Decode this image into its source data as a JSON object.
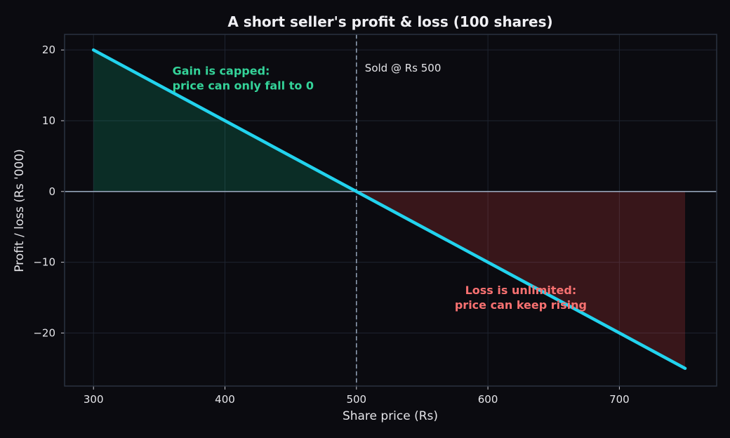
{
  "chart_data": {
    "type": "line",
    "title": "A short seller's profit & loss (100 shares)",
    "xlabel": "Share price (Rs)",
    "ylabel": "Profit / loss (Rs '000)",
    "xlim": [
      278,
      774
    ],
    "ylim": [
      -27.5,
      22.2
    ],
    "x_ticks": [
      300,
      400,
      500,
      600,
      700
    ],
    "y_ticks": [
      -20,
      -10,
      0,
      10,
      20
    ],
    "y_tick_labels": [
      "−20",
      "−10",
      "0",
      "10",
      "20"
    ],
    "grid": true,
    "series": [
      {
        "x": [
          300,
          750
        ],
        "y": [
          20,
          -25
        ],
        "color": "#22d3ee"
      }
    ],
    "reference_lines": {
      "vertical": {
        "x": 500,
        "label": "Sold @ Rs 500",
        "color": "#94a3b8"
      },
      "horizontal": {
        "y": 0,
        "color": "#94a3b8"
      }
    },
    "regions": [
      {
        "name": "gain",
        "from_x": 300,
        "to_x": 500,
        "color": "#10b981"
      },
      {
        "name": "loss",
        "from_x": 500,
        "to_x": 750,
        "color": "#ef4444"
      }
    ],
    "annotations": [
      {
        "lines": [
          "Gain is capped:",
          "price can only fall to 0"
        ],
        "color": "#34d399",
        "x": 360,
        "y": 16.5,
        "align": "start"
      },
      {
        "lines": [
          "Loss is unlimited:",
          "price can keep rising"
        ],
        "color": "#f87171",
        "x": 625,
        "y": -14.5,
        "align": "middle"
      }
    ],
    "colors": {
      "background": "#0b0b10",
      "grid": "#1f2430",
      "frame": "#2a3340"
    }
  }
}
